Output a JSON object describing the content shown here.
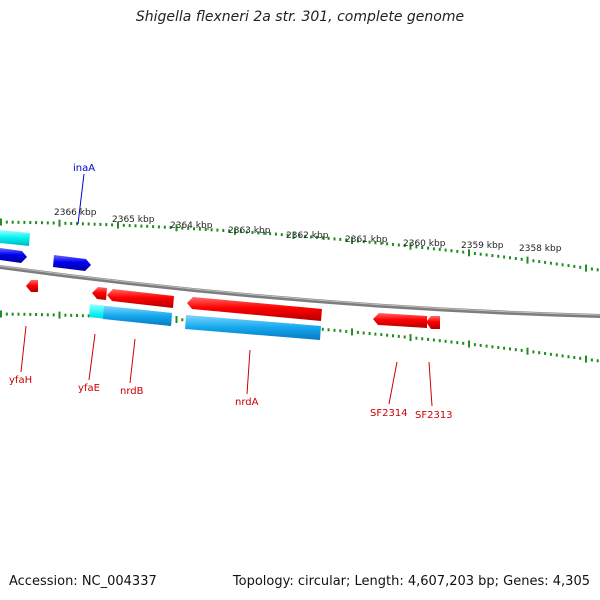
{
  "title": "Shigella flexneri 2a str. 301, complete genome",
  "footer": {
    "accession": "Accession: NC_004337",
    "topology": "Topology: circular; Length: 4,607,203 bp; Genes: 4,305"
  },
  "ruler": {
    "ticks": [
      {
        "label": "2366 kbp"
      },
      {
        "label": "2365 kbp"
      },
      {
        "label": "2364 kbp"
      },
      {
        "label": "2363 kbp"
      },
      {
        "label": "2362 kbp"
      },
      {
        "label": "2361 kbp"
      },
      {
        "label": "2360 kbp"
      },
      {
        "label": "2359 kbp"
      },
      {
        "label": "2358 kbp"
      }
    ]
  },
  "genes": [
    {
      "name": "inaA",
      "strand": "forward",
      "color": "#0000cc"
    },
    {
      "name": "yfaH",
      "strand": "reverse",
      "color": "#cc0000"
    },
    {
      "name": "yfaE",
      "strand": "reverse",
      "color": "#cc0000"
    },
    {
      "name": "nrdB",
      "strand": "reverse",
      "color": "#cc0000"
    },
    {
      "name": "nrdA",
      "strand": "reverse",
      "color": "#cc0000"
    },
    {
      "name": "SF2314",
      "strand": "reverse",
      "color": "#cc0000"
    },
    {
      "name": "SF2313",
      "strand": "reverse",
      "color": "#cc0000"
    }
  ],
  "colors": {
    "forward_cds": "#0000ee",
    "reverse_cds": "#ee0000",
    "forward_orf": "#00e5e5",
    "reverse_orf": "#1fa6e8",
    "backbone": "#808080",
    "ticks": "#228b22"
  }
}
